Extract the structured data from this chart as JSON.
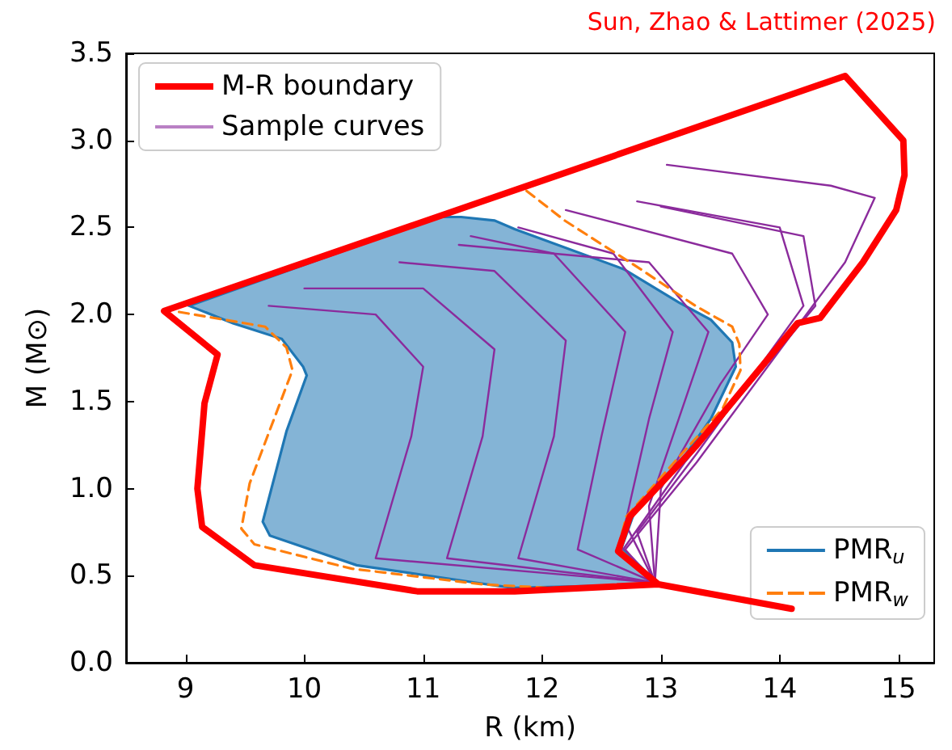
{
  "chart_data": {
    "type": "line",
    "xlabel": "R (km)",
    "ylabel": "M (M⊙)",
    "annotations": [
      "Sun, Zhao & Lattimer (2025)"
    ],
    "xlim": [
      8.5,
      15.3
    ],
    "xticks": [
      9,
      10,
      11,
      12,
      13,
      14,
      15
    ],
    "ylim": [
      0,
      3.5
    ],
    "yticks": [
      {
        "value": 0,
        "label": "0.0"
      },
      {
        "value": 0.5,
        "label": "0.5"
      },
      {
        "value": 1,
        "label": "1.0"
      },
      {
        "value": 1.5,
        "label": "1.5"
      },
      {
        "value": 2,
        "label": "2.0"
      },
      {
        "value": 2.5,
        "label": "2.5"
      },
      {
        "value": 3,
        "label": "3.0"
      },
      {
        "value": 3.5,
        "label": "3.5"
      }
    ],
    "grid": false,
    "legend": "top left",
    "line_style": "solid",
    "marker": "none",
    "series": [
      {
        "type": "area",
        "name": "PMR$_{u}$",
        "color": "#1f77b4",
        "x": [
          9.03,
          9.4,
          9.81,
          9.99,
          10.02,
          9.85,
          9.65,
          9.71,
          10.44,
          11.64,
          11.77,
          12.98,
          12.67,
          12.78,
          13.1,
          13.42,
          13.63,
          13.6,
          13.42,
          13.15,
          12.69,
          11.77,
          11.6,
          11.32,
          11.13
        ],
        "values": [
          2.05,
          1.95,
          1.86,
          1.7,
          1.65,
          1.33,
          0.81,
          0.73,
          0.56,
          0.44,
          0.43,
          0.45,
          0.66,
          0.87,
          1.09,
          1.4,
          1.7,
          1.84,
          1.97,
          2.07,
          2.26,
          2.49,
          2.54,
          2.56,
          2.56
        ]
      },
      {
        "name": "M-R boundary",
        "color": "#ff0000",
        "x": [
          14.1,
          12.98,
          11.77,
          10.95,
          9.58,
          9.14,
          9.1,
          9.16,
          9.27,
          8.82,
          12.05,
          14.55,
          15.04,
          15.05,
          14.98,
          14.7,
          14.34,
          14.15,
          13.29,
          12.74,
          12.64,
          12.98
        ],
        "values": [
          0.31,
          0.45,
          0.41,
          0.41,
          0.56,
          0.78,
          1.0,
          1.49,
          1.77,
          2.02,
          2.78,
          3.37,
          3.0,
          2.8,
          2.6,
          2.3,
          1.98,
          1.95,
          1.24,
          0.84,
          0.64,
          0.45
        ]
      },
      {
        "name": null,
        "color": "#8b2b9c",
        "x": [
          12.95,
          10.6,
          10.9,
          11.0,
          10.6,
          9.7
        ],
        "values": [
          0.46,
          0.6,
          1.3,
          1.7,
          2.0,
          2.05
        ]
      },
      {
        "name": null,
        "color": "#8b2b9c",
        "x": [
          12.95,
          11.2,
          11.5,
          11.6,
          11.0,
          10.0
        ],
        "values": [
          0.46,
          0.6,
          1.3,
          1.8,
          2.15,
          2.15
        ]
      },
      {
        "name": null,
        "color": "#8b2b9c",
        "x": [
          12.95,
          11.8,
          12.1,
          12.2,
          11.6,
          10.8
        ],
        "values": [
          0.46,
          0.6,
          1.3,
          1.85,
          2.25,
          2.3
        ]
      },
      {
        "name": null,
        "color": "#8b2b9c",
        "x": [
          12.95,
          12.3,
          12.5,
          12.7,
          12.1,
          11.4
        ],
        "values": [
          0.46,
          0.65,
          1.3,
          1.9,
          2.35,
          2.45
        ]
      },
      {
        "name": null,
        "color": "#8b2b9c",
        "x": [
          12.95,
          12.7,
          12.9,
          13.1,
          12.6,
          11.8
        ],
        "values": [
          0.46,
          0.8,
          1.4,
          1.9,
          2.35,
          2.5
        ]
      },
      {
        "name": null,
        "color": "#8b2b9c",
        "x": [
          12.95,
          12.9,
          13.2,
          13.4,
          12.9,
          11.3
        ],
        "values": [
          0.46,
          0.9,
          1.5,
          1.9,
          2.3,
          2.4
        ]
      },
      {
        "name": null,
        "color": "#8b2b9c",
        "x": [
          12.95,
          13.0,
          13.5,
          13.9,
          13.6,
          12.2
        ],
        "values": [
          0.46,
          1.0,
          1.6,
          2.0,
          2.35,
          2.6
        ]
      },
      {
        "name": null,
        "color": "#8b2b9c",
        "x": [
          12.95,
          12.8,
          13.3,
          14.2,
          14.0,
          12.8
        ],
        "values": [
          0.46,
          0.75,
          1.2,
          2.05,
          2.5,
          2.65
        ]
      },
      {
        "name": null,
        "color": "#8b2b9c",
        "x": [
          12.95,
          12.65,
          13.2,
          14.3,
          14.2,
          13.0
        ],
        "values": [
          0.46,
          0.62,
          1.15,
          2.05,
          2.45,
          2.62
        ]
      },
      {
        "name": "Sample curves",
        "color": "#8b2b9c",
        "x": [
          12.95,
          12.7,
          13.3,
          14.55,
          14.8,
          14.43,
          13.05
        ],
        "values": [
          0.46,
          0.65,
          1.15,
          2.3,
          2.67,
          2.74,
          2.86
        ]
      },
      {
        "name": "PMR$_{w}$",
        "color": "#ff7f0e",
        "line_style": "dashed",
        "x": [
          11.87,
          12.19,
          12.83,
          13.29,
          13.6,
          13.66,
          13.67,
          13.52,
          13.15,
          12.71,
          12.64,
          12.98,
          12.05,
          11.5,
          10.4,
          9.58,
          9.47,
          9.54,
          9.9,
          9.85,
          9.67,
          8.9
        ],
        "values": [
          2.71,
          2.54,
          2.26,
          2.05,
          1.93,
          1.83,
          1.68,
          1.46,
          1.18,
          0.84,
          0.66,
          0.44,
          0.43,
          0.45,
          0.54,
          0.68,
          0.77,
          1.03,
          1.68,
          1.81,
          1.93,
          2.02
        ]
      }
    ]
  }
}
